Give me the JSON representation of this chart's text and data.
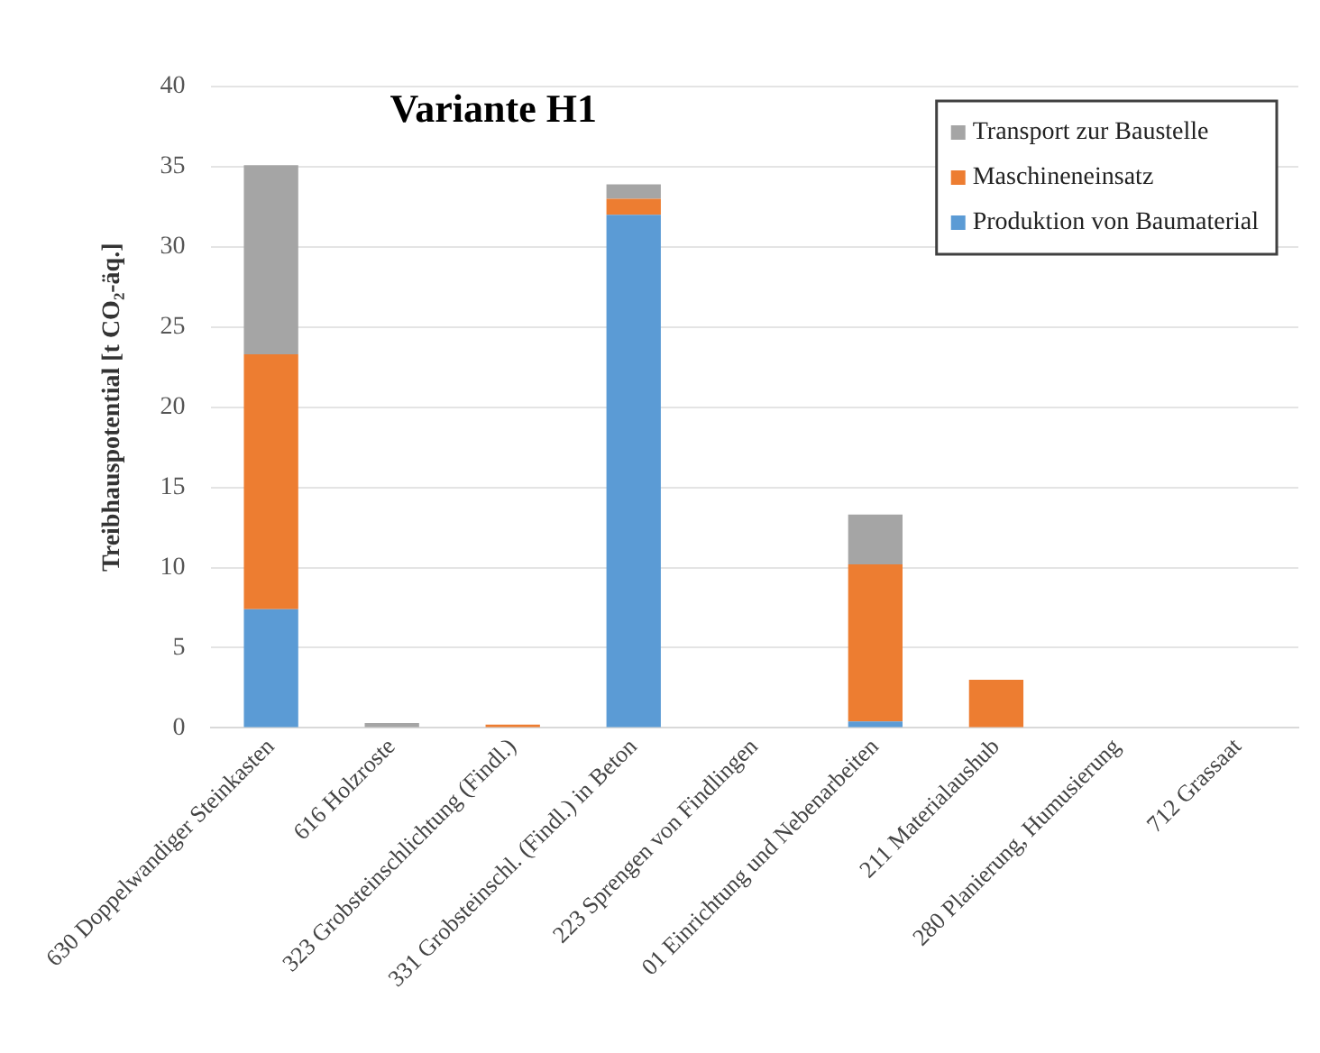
{
  "chart_data": {
    "type": "bar",
    "stacked": true,
    "title": "Variante H1",
    "ylabel": "Treibhauspotential [t CO₂-äq.]",
    "categories": [
      "630 Doppelwandiger Steinkasten",
      "616 Holzroste",
      "323 Grobsteinschlichtung (Findl.)",
      "331 Grobsteinschl. (Findl.) in Beton",
      "223 Sprengen von Findlingen",
      "01 Einrichtung und Nebenarbeiten",
      "211 Materialaushub",
      "280 Planierung, Humusierung",
      "712 Grassaat"
    ],
    "series": [
      {
        "name": "Produktion von Baumaterial",
        "color": "#5b9bd5",
        "values": [
          7.4,
          0,
          0,
          32,
          0,
          0.4,
          0,
          0,
          0
        ]
      },
      {
        "name": "Maschineneinsatz",
        "color": "#ed7d31",
        "values": [
          15.9,
          0,
          0.2,
          1,
          0,
          9.8,
          3,
          0,
          0
        ]
      },
      {
        "name": "Transport zur Baustelle",
        "color": "#a5a5a5",
        "values": [
          11.8,
          0.3,
          0,
          0.9,
          0,
          3.1,
          0,
          0,
          0
        ]
      }
    ],
    "ylim": [
      0,
      40
    ],
    "yticks": [
      0,
      5,
      10,
      15,
      20,
      25,
      30,
      35,
      40
    ],
    "grid": "y",
    "legend": "top right"
  }
}
